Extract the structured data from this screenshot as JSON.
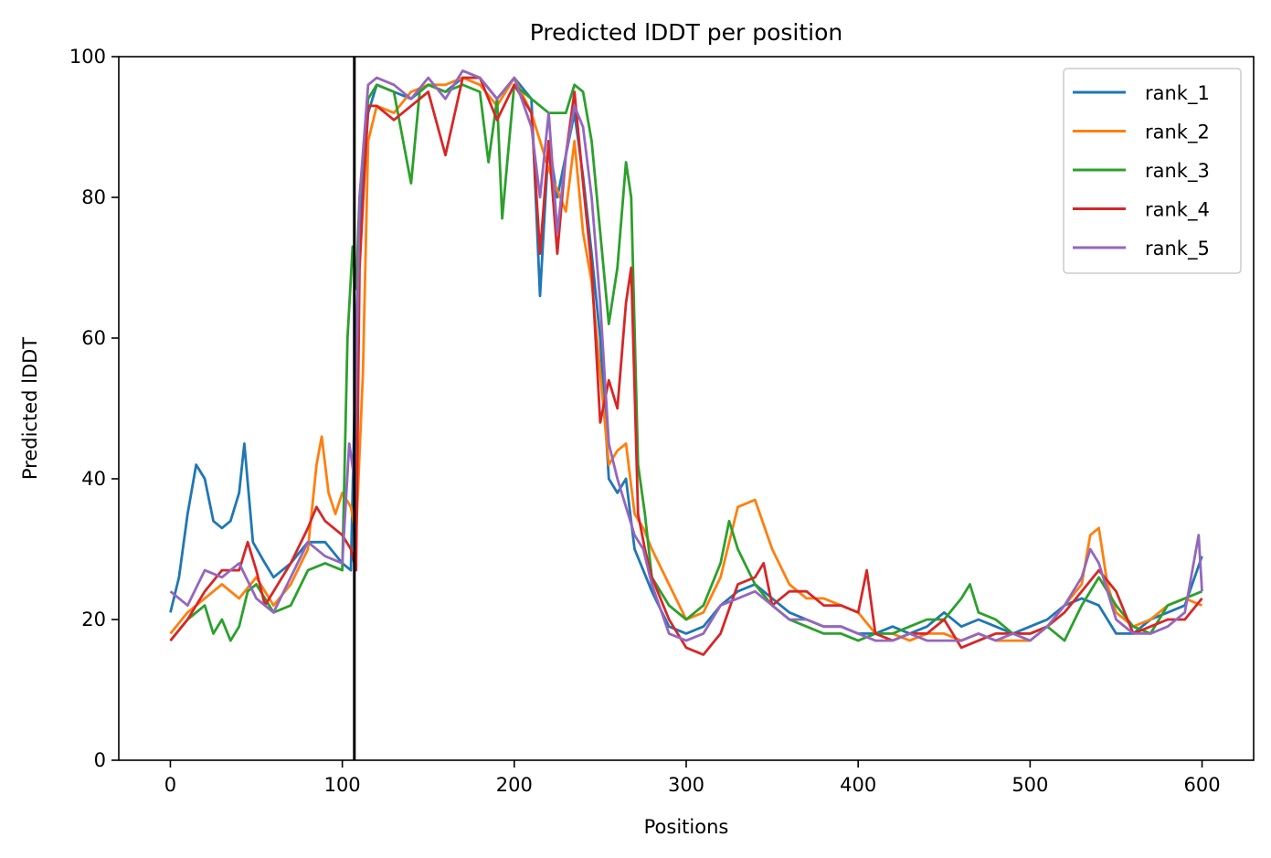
{
  "chart_data": {
    "type": "line",
    "title": "Predicted lDDT per position",
    "xlabel": "Positions",
    "ylabel": "Predicted lDDT",
    "xlim": [
      -30,
      630
    ],
    "ylim": [
      0,
      100
    ],
    "xticks": [
      0,
      100,
      200,
      300,
      400,
      500,
      600
    ],
    "yticks": [
      0,
      20,
      40,
      60,
      80,
      100
    ],
    "grid": false,
    "legend_position": "top-right",
    "vline": 107,
    "series": [
      {
        "name": "rank_1",
        "color": "#1f77b4",
        "x": [
          0,
          5,
          10,
          15,
          20,
          25,
          30,
          35,
          40,
          43,
          48,
          55,
          60,
          70,
          80,
          90,
          100,
          105,
          108,
          110,
          115,
          120,
          130,
          140,
          150,
          160,
          170,
          180,
          190,
          200,
          210,
          215,
          220,
          225,
          230,
          235,
          240,
          245,
          250,
          255,
          260,
          265,
          270,
          275,
          280,
          290,
          300,
          310,
          320,
          330,
          340,
          350,
          360,
          370,
          380,
          390,
          400,
          410,
          420,
          430,
          440,
          450,
          460,
          470,
          480,
          490,
          500,
          510,
          520,
          530,
          540,
          550,
          560,
          570,
          580,
          590,
          600
        ],
        "values": [
          21,
          26,
          35,
          42,
          40,
          34,
          33,
          34,
          38,
          45,
          31,
          28,
          26,
          28,
          31,
          31,
          28,
          27,
          60,
          75,
          92,
          96,
          95,
          94,
          96,
          95,
          97,
          97,
          94,
          97,
          94,
          66,
          88,
          80,
          86,
          92,
          83,
          72,
          60,
          40,
          38,
          40,
          30,
          27,
          24,
          19,
          18,
          19,
          22,
          24,
          25,
          23,
          21,
          20,
          19,
          19,
          18,
          18,
          19,
          18,
          19,
          21,
          19,
          20,
          19,
          18,
          19,
          20,
          22,
          23,
          22,
          18,
          18,
          20,
          21,
          22,
          29
        ]
      },
      {
        "name": "rank_2",
        "color": "#ff7f0e",
        "x": [
          0,
          10,
          20,
          30,
          40,
          50,
          60,
          70,
          80,
          85,
          88,
          92,
          96,
          100,
          105,
          108,
          112,
          115,
          120,
          130,
          140,
          150,
          160,
          170,
          180,
          190,
          200,
          210,
          220,
          230,
          235,
          240,
          245,
          250,
          255,
          260,
          265,
          270,
          275,
          280,
          290,
          300,
          310,
          320,
          330,
          340,
          350,
          360,
          370,
          380,
          390,
          400,
          410,
          420,
          430,
          440,
          450,
          460,
          470,
          480,
          490,
          500,
          510,
          520,
          530,
          535,
          540,
          545,
          550,
          560,
          570,
          580,
          590,
          600
        ],
        "values": [
          18,
          21,
          23,
          25,
          23,
          26,
          22,
          25,
          30,
          42,
          46,
          38,
          35,
          38,
          36,
          32,
          55,
          88,
          93,
          92,
          95,
          96,
          96,
          97,
          96,
          93,
          97,
          92,
          84,
          78,
          88,
          75,
          68,
          55,
          42,
          44,
          45,
          35,
          33,
          30,
          25,
          20,
          21,
          26,
          36,
          37,
          30,
          25,
          23,
          23,
          22,
          21,
          18,
          18,
          17,
          18,
          18,
          17,
          18,
          17,
          17,
          17,
          19,
          22,
          25,
          32,
          33,
          25,
          21,
          19,
          20,
          22,
          23,
          22
        ]
      },
      {
        "name": "rank_3",
        "color": "#2ca02c",
        "x": [
          0,
          10,
          20,
          25,
          30,
          35,
          40,
          45,
          50,
          60,
          70,
          80,
          90,
          100,
          103,
          106,
          108,
          110,
          115,
          120,
          130,
          140,
          145,
          150,
          160,
          170,
          180,
          185,
          190,
          193,
          200,
          210,
          220,
          230,
          235,
          240,
          245,
          250,
          255,
          260,
          265,
          268,
          272,
          276,
          280,
          290,
          300,
          310,
          320,
          325,
          330,
          340,
          350,
          360,
          370,
          380,
          390,
          400,
          410,
          420,
          430,
          440,
          450,
          460,
          465,
          470,
          480,
          490,
          500,
          510,
          520,
          530,
          540,
          550,
          560,
          570,
          580,
          590,
          600
        ],
        "values": [
          17,
          20,
          22,
          18,
          20,
          17,
          19,
          24,
          25,
          21,
          22,
          27,
          28,
          27,
          60,
          73,
          67,
          80,
          94,
          96,
          95,
          82,
          95,
          96,
          95,
          96,
          95,
          85,
          94,
          77,
          96,
          94,
          92,
          92,
          96,
          95,
          88,
          75,
          62,
          70,
          85,
          80,
          42,
          35,
          26,
          22,
          20,
          22,
          28,
          34,
          30,
          25,
          22,
          20,
          19,
          18,
          18,
          17,
          18,
          18,
          19,
          20,
          20,
          23,
          25,
          21,
          20,
          18,
          18,
          19,
          17,
          22,
          26,
          22,
          19,
          18,
          22,
          23,
          24
        ]
      },
      {
        "name": "rank_4",
        "color": "#d62728",
        "x": [
          0,
          10,
          20,
          30,
          40,
          45,
          50,
          55,
          60,
          70,
          80,
          85,
          90,
          95,
          100,
          105,
          108,
          110,
          115,
          120,
          130,
          140,
          150,
          160,
          170,
          180,
          190,
          200,
          210,
          215,
          220,
          225,
          230,
          235,
          240,
          245,
          250,
          255,
          260,
          265,
          268,
          272,
          276,
          280,
          290,
          300,
          310,
          320,
          330,
          340,
          345,
          350,
          360,
          370,
          380,
          390,
          400,
          405,
          410,
          420,
          430,
          440,
          450,
          460,
          470,
          480,
          490,
          500,
          510,
          520,
          530,
          540,
          550,
          560,
          570,
          580,
          590,
          600
        ],
        "values": [
          17,
          20,
          24,
          27,
          27,
          31,
          27,
          22,
          24,
          28,
          33,
          36,
          34,
          33,
          32,
          30,
          27,
          70,
          93,
          93,
          91,
          93,
          95,
          86,
          97,
          97,
          91,
          96,
          92,
          72,
          88,
          72,
          86,
          95,
          82,
          70,
          48,
          54,
          50,
          65,
          70,
          35,
          30,
          26,
          20,
          16,
          15,
          18,
          25,
          26,
          28,
          22,
          24,
          24,
          22,
          22,
          21,
          27,
          18,
          17,
          18,
          18,
          20,
          16,
          17,
          18,
          18,
          18,
          19,
          21,
          24,
          27,
          24,
          18,
          19,
          20,
          20,
          23
        ]
      },
      {
        "name": "rank_5",
        "color": "#9467bd",
        "x": [
          0,
          10,
          20,
          30,
          40,
          50,
          60,
          70,
          80,
          90,
          100,
          104,
          107,
          110,
          115,
          120,
          130,
          140,
          150,
          160,
          170,
          180,
          190,
          200,
          210,
          215,
          220,
          225,
          230,
          235,
          240,
          245,
          250,
          255,
          260,
          265,
          270,
          275,
          280,
          290,
          300,
          310,
          320,
          330,
          340,
          350,
          360,
          370,
          380,
          390,
          400,
          410,
          420,
          430,
          440,
          450,
          460,
          470,
          480,
          490,
          500,
          510,
          520,
          530,
          535,
          540,
          550,
          560,
          570,
          580,
          590,
          598,
          600
        ],
        "values": [
          24,
          22,
          27,
          26,
          28,
          23,
          21,
          26,
          31,
          29,
          28,
          45,
          40,
          80,
          96,
          97,
          96,
          94,
          97,
          94,
          98,
          97,
          94,
          97,
          90,
          80,
          92,
          75,
          86,
          93,
          90,
          80,
          65,
          45,
          40,
          36,
          32,
          30,
          25,
          18,
          17,
          18,
          22,
          23,
          24,
          22,
          20,
          20,
          19,
          19,
          18,
          17,
          17,
          18,
          17,
          17,
          17,
          18,
          17,
          18,
          17,
          19,
          22,
          26,
          30,
          28,
          20,
          18,
          18,
          19,
          21,
          32,
          24
        ]
      }
    ]
  }
}
